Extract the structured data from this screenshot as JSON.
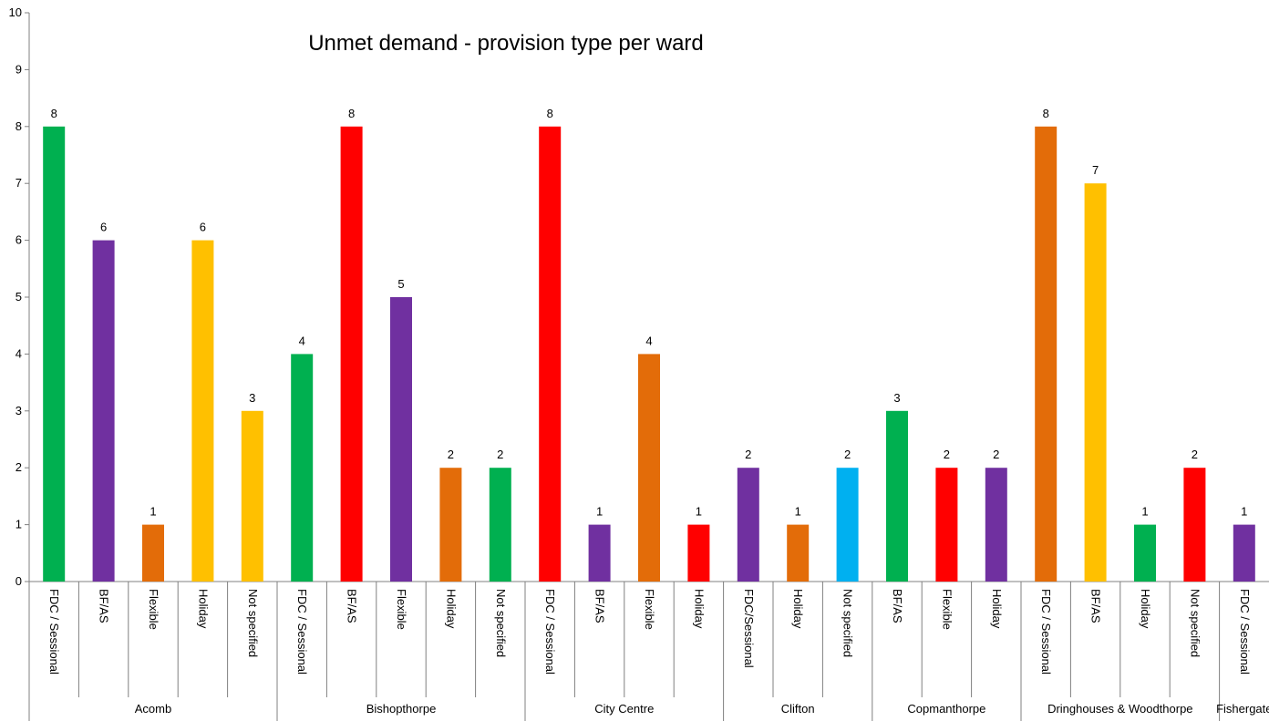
{
  "chart_data": {
    "type": "bar",
    "title": "Unmet demand - provision type per ward",
    "ylim": [
      0,
      10
    ],
    "yticks": [
      0,
      1,
      2,
      3,
      4,
      5,
      6,
      7,
      8,
      9,
      10
    ],
    "grid": false,
    "legend": "none",
    "data_labels": true,
    "groups": [
      {
        "ward": "Acomb",
        "bars": [
          {
            "label": "FDC / Sessional",
            "value": 8,
            "color": "#00B050"
          },
          {
            "label": "BF/AS",
            "value": 6,
            "color": "#7030A0"
          },
          {
            "label": "Flexible",
            "value": 1,
            "color": "#E36C09"
          },
          {
            "label": "Holiday",
            "value": 6,
            "color": "#FFC000"
          },
          {
            "label": "Not specified",
            "value": 3,
            "color": "#FFC000"
          }
        ]
      },
      {
        "ward": "Bishopthorpe",
        "bars": [
          {
            "label": "FDC / Sessional",
            "value": 4,
            "color": "#00B050"
          },
          {
            "label": "BF/AS",
            "value": 8,
            "color": "#FF0000"
          },
          {
            "label": "Flexible",
            "value": 5,
            "color": "#7030A0"
          },
          {
            "label": "Holiday",
            "value": 2,
            "color": "#E36C09"
          },
          {
            "label": "Not specified",
            "value": 2,
            "color": "#00B050"
          }
        ]
      },
      {
        "ward": "City Centre",
        "bars": [
          {
            "label": "FDC / Sessional",
            "value": 8,
            "color": "#FF0000"
          },
          {
            "label": "BF/AS",
            "value": 1,
            "color": "#7030A0"
          },
          {
            "label": "Flexible",
            "value": 4,
            "color": "#E36C09"
          },
          {
            "label": "Holiday",
            "value": 1,
            "color": "#FF0000"
          }
        ]
      },
      {
        "ward": "Clifton",
        "bars": [
          {
            "label": "FDC/Sessional",
            "value": 2,
            "color": "#7030A0"
          },
          {
            "label": "Holiday",
            "value": 1,
            "color": "#E36C09"
          },
          {
            "label": "Not specified",
            "value": 2,
            "color": "#00B0F0"
          }
        ]
      },
      {
        "ward": "Copmanthorpe",
        "bars": [
          {
            "label": "BF/AS",
            "value": 3,
            "color": "#00B050"
          },
          {
            "label": "Flexible",
            "value": 2,
            "color": "#FF0000"
          },
          {
            "label": "Holiday",
            "value": 2,
            "color": "#7030A0"
          }
        ]
      },
      {
        "ward": "Dringhouses & Woodthorpe",
        "bars": [
          {
            "label": "FDC / Sessional",
            "value": 8,
            "color": "#E36C09"
          },
          {
            "label": "BF/AS",
            "value": 7,
            "color": "#FFC000"
          },
          {
            "label": "Holiday",
            "value": 1,
            "color": "#00B050"
          },
          {
            "label": "Not specified",
            "value": 2,
            "color": "#FF0000"
          }
        ]
      },
      {
        "ward": "Fishergate",
        "bars": [
          {
            "label": "FDC / Sessional",
            "value": 1,
            "color": "#7030A0"
          }
        ]
      }
    ]
  }
}
